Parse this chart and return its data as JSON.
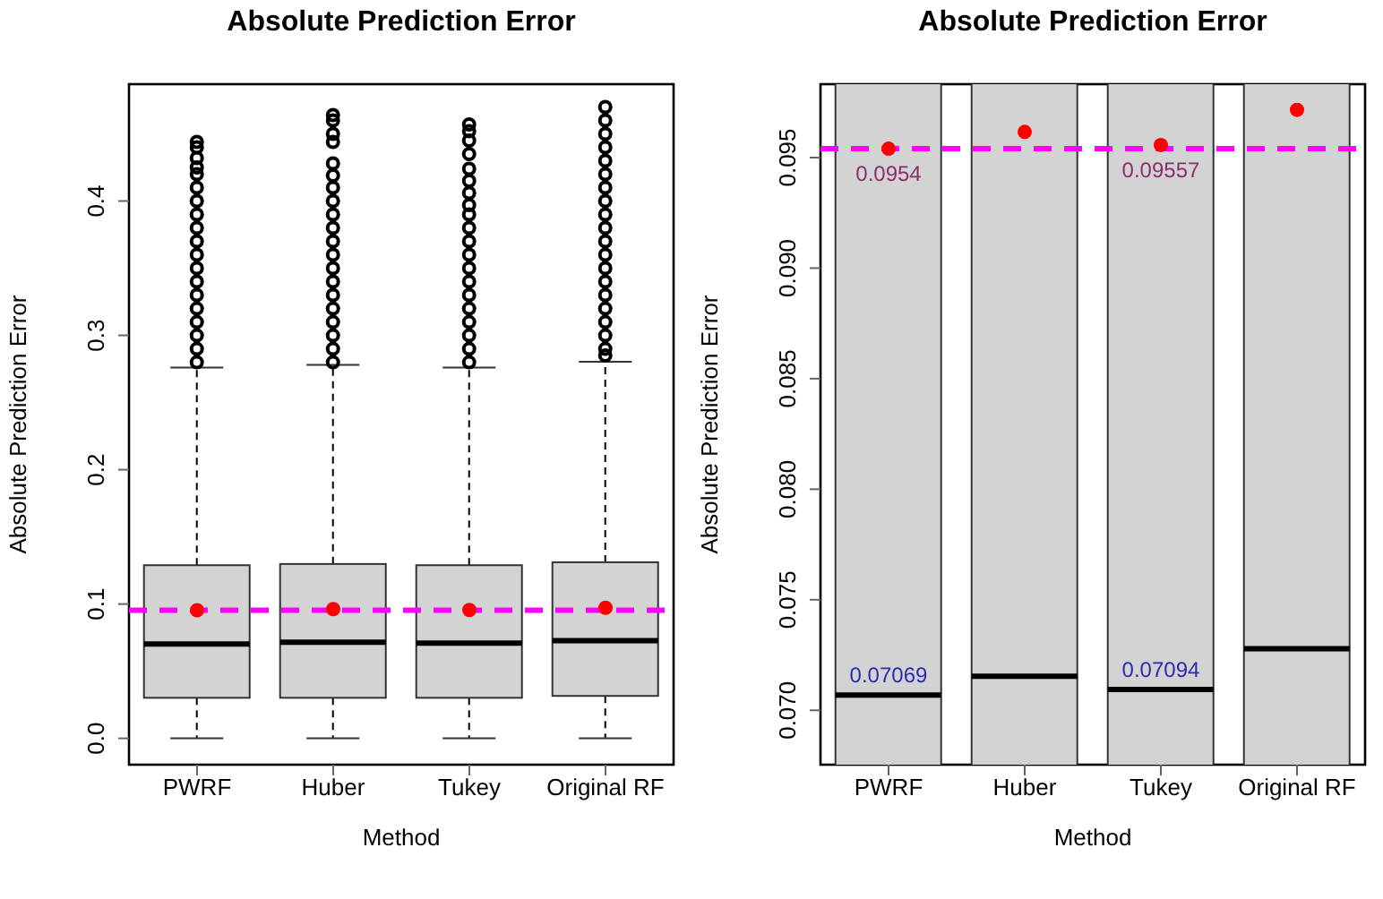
{
  "chart_data": [
    {
      "type": "box",
      "title": "Absolute Prediction Error",
      "xlabel": "Method",
      "ylabel": "Absolute Prediction Error",
      "categories": [
        "PWRF",
        "Huber",
        "Tukey",
        "Original RF"
      ],
      "boxes": [
        {
          "low": 0,
          "q1": 0.0302,
          "median": 0.0702,
          "q3": 0.1289,
          "high": 0.276,
          "mean": 0.0954,
          "outliers": [
            0.28,
            0.29,
            0.3,
            0.31,
            0.32,
            0.33,
            0.34,
            0.35,
            0.36,
            0.37,
            0.38,
            0.39,
            0.4,
            0.41,
            0.42,
            0.425,
            0.432,
            0.44,
            0.444
          ]
        },
        {
          "low": 0,
          "q1": 0.0302,
          "median": 0.0716,
          "q3": 0.1298,
          "high": 0.278,
          "mean": 0.0962,
          "outliers": [
            0.28,
            0.29,
            0.3,
            0.31,
            0.32,
            0.33,
            0.34,
            0.35,
            0.36,
            0.37,
            0.38,
            0.39,
            0.4,
            0.41,
            0.419,
            0.428,
            0.444,
            0.45,
            0.46,
            0.464
          ]
        },
        {
          "low": 0,
          "q1": 0.0302,
          "median": 0.0709,
          "q3": 0.1289,
          "high": 0.276,
          "mean": 0.09557,
          "outliers": [
            0.28,
            0.29,
            0.3,
            0.31,
            0.32,
            0.33,
            0.34,
            0.35,
            0.36,
            0.37,
            0.38,
            0.39,
            0.397,
            0.406,
            0.415,
            0.424,
            0.435,
            0.445,
            0.452,
            0.457
          ]
        },
        {
          "low": 0,
          "q1": 0.0316,
          "median": 0.0728,
          "q3": 0.1311,
          "high": 0.2804,
          "mean": 0.0972,
          "outliers": [
            0.285,
            0.29,
            0.3,
            0.31,
            0.32,
            0.33,
            0.34,
            0.35,
            0.36,
            0.37,
            0.38,
            0.39,
            0.4,
            0.41,
            0.42,
            0.43,
            0.44,
            0.45,
            0.46,
            0.47
          ]
        }
      ],
      "ylim": [
        -0.0196,
        0.487
      ],
      "yticks": [
        {
          "value": 0,
          "label": "0.0"
        },
        0.1,
        0.2,
        0.3,
        0.4
      ],
      "ref_lines": [
        {
          "axis": "y",
          "value": 0.0954,
          "color": "#ff00ff",
          "line_style": "dashed"
        }
      ],
      "grid": false,
      "legend": false
    },
    {
      "type": "box",
      "title": "Absolute Prediction Error",
      "xlabel": "Method",
      "ylabel": "Absolute Prediction Error",
      "categories": [
        "PWRF",
        "Huber",
        "Tukey",
        "Original RF"
      ],
      "boxes": [
        {
          "low": 0,
          "q1": 0.0302,
          "median": 0.07069,
          "q3": 0.1289,
          "high": 0.276,
          "mean": 0.0954
        },
        {
          "low": 0,
          "q1": 0.0302,
          "median": 0.07154,
          "q3": 0.1298,
          "high": 0.278,
          "mean": 0.09616
        },
        {
          "low": 0,
          "q1": 0.0302,
          "median": 0.07094,
          "q3": 0.1289,
          "high": 0.276,
          "mean": 0.09557
        },
        {
          "low": 0,
          "q1": 0.0316,
          "median": 0.07278,
          "q3": 0.1311,
          "high": 0.2804,
          "mean": 0.09716
        }
      ],
      "ylim": [
        0.06754,
        0.09832
      ],
      "yticks": [
        {
          "value": 0.07,
          "label": "0.070"
        },
        0.075,
        {
          "value": 0.08,
          "label": "0.080"
        },
        0.085,
        {
          "value": 0.09,
          "label": "0.090"
        },
        0.095
      ],
      "ref_lines": [
        {
          "axis": "y",
          "value": 0.0954,
          "color": "#ff00ff",
          "line_style": "dashed"
        }
      ],
      "annotations": [
        {
          "text": "0.0954",
          "x": "PWRF",
          "y": 0.0954
        },
        {
          "text": "0.09557",
          "x": "Tukey",
          "y": 0.09557
        },
        {
          "text": "0.07069",
          "x": "PWRF",
          "y": 0.07069
        },
        {
          "text": "0.07094",
          "x": "Tukey",
          "y": 0.07094
        }
      ],
      "grid": false,
      "legend": false
    }
  ]
}
